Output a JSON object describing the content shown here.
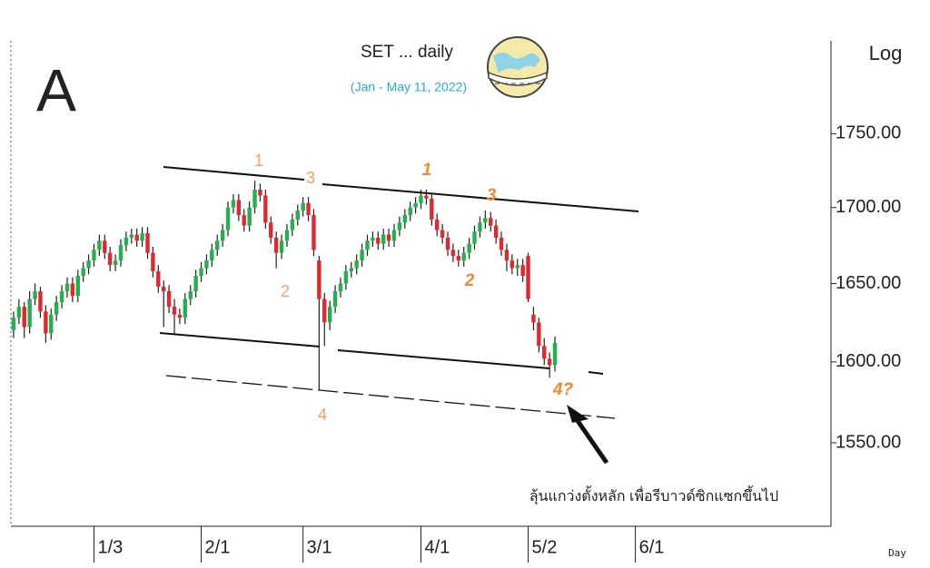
{
  "chart_data": {
    "type": "candlestick",
    "title": "SET ... daily",
    "subtitle": "(Jan - May 11, 2022)",
    "panel_label": "A",
    "scale_label": "Log",
    "x_label": "Day",
    "log_scale": true,
    "up_color": "#22b14c",
    "down_color": "#e0282e",
    "ylim": [
      1500,
      1815
    ],
    "yticks": [
      {
        "value": 1550,
        "label": "1550.00"
      },
      {
        "value": 1600,
        "label": "1600.00"
      },
      {
        "value": 1650,
        "label": "1650.00"
      },
      {
        "value": 1700,
        "label": "1700.00"
      },
      {
        "value": 1750,
        "label": "1750.00"
      }
    ],
    "annotations": [
      "1",
      "3",
      "2",
      "4",
      "1",
      "3",
      "2",
      "4?",
      "ลุ้นแกว่งตั้งหลัก เพื่อรีบาวด์ซิกแซกขึ้นไป"
    ],
    "categories": [
      null,
      null,
      null,
      null,
      null,
      null,
      null,
      null,
      null,
      null,
      null,
      null,
      null,
      null,
      null,
      "1/3",
      null,
      null,
      null,
      null,
      null,
      null,
      null,
      null,
      null,
      null,
      null,
      null,
      null,
      null,
      null,
      null,
      null,
      null,
      null,
      "2/1",
      null,
      null,
      null,
      null,
      null,
      null,
      null,
      null,
      null,
      null,
      null,
      null,
      null,
      null,
      null,
      null,
      null,
      null,
      "3/1",
      null,
      null,
      null,
      null,
      null,
      null,
      null,
      null,
      null,
      null,
      null,
      null,
      null,
      null,
      null,
      null,
      null,
      null,
      null,
      null,
      null,
      "4/1",
      null,
      null,
      null,
      null,
      null,
      null,
      null,
      null,
      null,
      null,
      null,
      null,
      null,
      null,
      null,
      null,
      null,
      null,
      null,
      "5/2",
      null,
      null,
      null,
      null,
      null,
      null,
      null,
      null,
      null,
      null,
      null,
      null,
      null,
      null,
      null,
      null,
      null,
      null,
      null,
      "6/1",
      null,
      null,
      null,
      null,
      null,
      null,
      null,
      null,
      null,
      null,
      null,
      null,
      null,
      null,
      null,
      null,
      null,
      null,
      null,
      null,
      null,
      null,
      null,
      null,
      null,
      null,
      null,
      null,
      null,
      null,
      null,
      null,
      null,
      null,
      null,
      null
    ],
    "open": [
      1620,
      1628,
      1635,
      1622,
      1640,
      1645,
      1632,
      1618,
      1630,
      1638,
      1645,
      1650,
      1642,
      1655,
      1660,
      1665,
      1672,
      1678,
      1670,
      1662,
      1665,
      1675,
      1680,
      1682,
      1678,
      1683,
      1670,
      1658,
      1648,
      1645,
      1635,
      1630,
      1628,
      1640,
      1645,
      1655,
      1660,
      1665,
      1672,
      1678,
      1685,
      1700,
      1705,
      1695,
      1688,
      1700,
      1712,
      1708,
      1690,
      1680,
      1670,
      1678,
      1685,
      1692,
      1698,
      1703,
      1695,
      1665,
      1640,
      1625,
      1635,
      1645,
      1650,
      1658,
      1660,
      1665,
      1672,
      1678,
      1680,
      1676,
      1682,
      1678,
      1685,
      1690,
      1695,
      1700,
      1703,
      1708,
      1706,
      1692,
      1685,
      1680,
      1672,
      1668,
      1665,
      1670,
      1676,
      1684,
      1690,
      1693,
      1688,
      1680,
      1672,
      1665,
      1660,
      1662,
      1668,
      1630,
      1625,
      1610,
      1602,
      1598,
      null,
      null,
      null,
      null,
      null,
      null,
      null,
      null,
      null,
      null,
      null,
      null,
      null,
      null,
      null,
      null,
      null,
      null,
      null,
      null,
      null,
      null,
      null,
      null,
      null,
      null,
      null,
      null,
      null,
      null,
      null,
      null,
      null,
      null,
      null,
      null,
      null,
      null,
      null,
      null,
      null,
      null,
      null,
      null,
      null,
      null,
      null,
      null,
      null,
      null,
      null
    ],
    "high": [
      1632,
      1640,
      1638,
      1645,
      1650,
      1648,
      1636,
      1634,
      1642,
      1649,
      1654,
      1654,
      1659,
      1664,
      1669,
      1676,
      1682,
      1682,
      1674,
      1669,
      1679,
      1684,
      1686,
      1686,
      1687,
      1687,
      1674,
      1662,
      1652,
      1649,
      1640,
      1634,
      1644,
      1649,
      1659,
      1664,
      1669,
      1676,
      1682,
      1689,
      1704,
      1709,
      1709,
      1699,
      1704,
      1718,
      1716,
      1712,
      1694,
      1684,
      1682,
      1689,
      1696,
      1702,
      1707,
      1707,
      1699,
      1668,
      1644,
      1639,
      1649,
      1654,
      1662,
      1664,
      1669,
      1676,
      1682,
      1684,
      1684,
      1686,
      1686,
      1689,
      1694,
      1699,
      1704,
      1707,
      1712,
      1712,
      1710,
      1696,
      1689,
      1684,
      1676,
      1672,
      1674,
      1680,
      1688,
      1694,
      1698,
      1697,
      1692,
      1684,
      1676,
      1669,
      1666,
      1666,
      1670,
      1635,
      1628,
      1615,
      1606,
      1616,
      null,
      null,
      null,
      null,
      null,
      null,
      null,
      null,
      null,
      null,
      null,
      null,
      null,
      null,
      null,
      null,
      null,
      null,
      null,
      null,
      null,
      null,
      null,
      null,
      null,
      null,
      null,
      null,
      null,
      null,
      null,
      null,
      null,
      null,
      null,
      null,
      null,
      null,
      null,
      null,
      null,
      null,
      null,
      null,
      null,
      null,
      null,
      null,
      null,
      null,
      null
    ],
    "low": [
      1615,
      1624,
      1615,
      1618,
      1636,
      1628,
      1612,
      1614,
      1626,
      1634,
      1641,
      1638,
      1638,
      1651,
      1656,
      1661,
      1668,
      1666,
      1658,
      1658,
      1661,
      1671,
      1676,
      1674,
      1674,
      1666,
      1654,
      1644,
      1622,
      1631,
      1618,
      1624,
      1624,
      1636,
      1641,
      1651,
      1656,
      1661,
      1668,
      1674,
      1681,
      1696,
      1691,
      1684,
      1684,
      1696,
      1704,
      1686,
      1676,
      1660,
      1666,
      1674,
      1681,
      1688,
      1694,
      1691,
      1668,
      1582,
      1610,
      1620,
      1631,
      1641,
      1646,
      1654,
      1656,
      1661,
      1668,
      1674,
      1672,
      1672,
      1674,
      1674,
      1681,
      1686,
      1691,
      1696,
      1699,
      1702,
      1688,
      1681,
      1676,
      1668,
      1664,
      1661,
      1661,
      1666,
      1672,
      1680,
      1686,
      1684,
      1676,
      1668,
      1658,
      1656,
      1655,
      1651,
      1638,
      1620,
      1606,
      1598,
      1590,
      1594,
      null,
      null,
      null,
      null,
      null,
      null,
      null,
      null,
      null,
      null,
      null,
      null,
      null,
      null,
      null,
      null,
      null,
      null,
      null,
      null,
      null,
      null,
      null,
      null,
      null,
      null,
      null,
      null,
      null,
      null,
      null,
      null,
      null,
      null,
      null,
      null,
      null,
      null,
      null,
      null,
      null,
      null,
      null,
      null,
      null,
      null,
      null,
      null,
      null,
      null,
      null
    ],
    "close": [
      1628,
      1635,
      1622,
      1640,
      1645,
      1632,
      1618,
      1630,
      1638,
      1645,
      1650,
      1642,
      1655,
      1660,
      1665,
      1672,
      1678,
      1670,
      1662,
      1665,
      1675,
      1680,
      1682,
      1678,
      1683,
      1670,
      1658,
      1648,
      1645,
      1635,
      1630,
      1628,
      1640,
      1645,
      1655,
      1660,
      1665,
      1672,
      1678,
      1685,
      1700,
      1705,
      1695,
      1688,
      1700,
      1712,
      1708,
      1690,
      1680,
      1670,
      1678,
      1685,
      1692,
      1698,
      1703,
      1695,
      1672,
      1640,
      1625,
      1635,
      1645,
      1650,
      1658,
      1660,
      1665,
      1672,
      1678,
      1680,
      1676,
      1682,
      1678,
      1685,
      1690,
      1695,
      1700,
      1703,
      1708,
      1706,
      1692,
      1685,
      1680,
      1672,
      1668,
      1665,
      1670,
      1676,
      1684,
      1690,
      1693,
      1688,
      1680,
      1672,
      1665,
      1660,
      1662,
      1655,
      1640,
      1625,
      1610,
      1602,
      1598,
      1612,
      null,
      null,
      null,
      null,
      null,
      null,
      null,
      null,
      null,
      null,
      null,
      null,
      null,
      null,
      null,
      null,
      null,
      null,
      null,
      null,
      null,
      null,
      null,
      null,
      null,
      null,
      null,
      null,
      null,
      null,
      null,
      null,
      null,
      null,
      null,
      null,
      null,
      null,
      null,
      null,
      null,
      null,
      null,
      null,
      null,
      null,
      null,
      null,
      null,
      null,
      null
    ]
  }
}
